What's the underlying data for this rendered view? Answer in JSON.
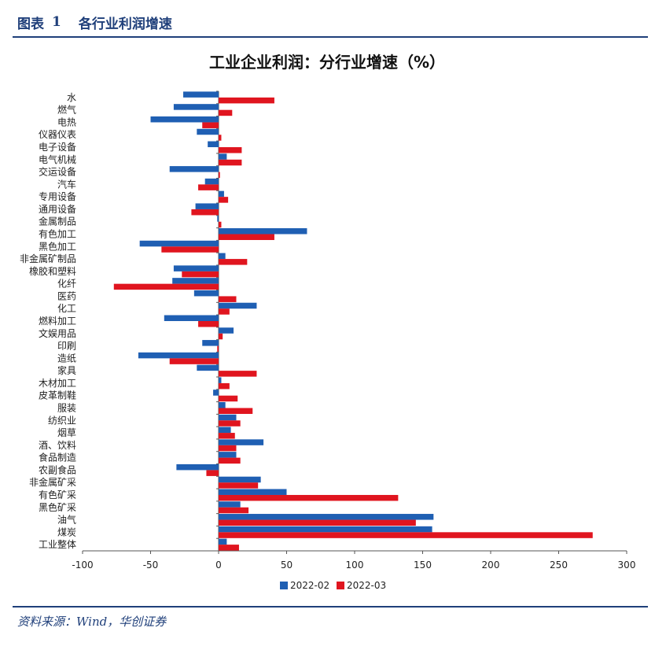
{
  "header": {
    "label": "图表",
    "number": "1",
    "title": "各行业利润增速"
  },
  "source": "资料来源：Wind，华创证券",
  "chart_data": {
    "type": "bar",
    "orientation": "horizontal",
    "title": "工业企业利润：分行业增速（%）",
    "xlabel": "",
    "ylabel": "",
    "xlim": [
      -100,
      300
    ],
    "xticks": [
      -100,
      -50,
      0,
      50,
      100,
      150,
      200,
      250,
      300
    ],
    "grid": false,
    "legend_position": "bottom",
    "categories": [
      "水",
      "燃气",
      "电热",
      "仪器仪表",
      "电子设备",
      "电气机械",
      "交运设备",
      "汽车",
      "专用设备",
      "通用设备",
      "金属制品",
      "有色加工",
      "黑色加工",
      "非金属矿制品",
      "橡胶和塑料",
      "化纤",
      "医药",
      "化工",
      "燃料加工",
      "文娱用品",
      "印刷",
      "造纸",
      "家具",
      "木材加工",
      "皮革制鞋",
      "服装",
      "纺织业",
      "烟草",
      "酒、饮料",
      "食品制造",
      "农副食品",
      "非金属矿采",
      "有色矿采",
      "黑色矿采",
      "油气",
      "煤炭",
      "工业整体"
    ],
    "series": [
      {
        "name": "2022-02",
        "color": "#1f5fb3",
        "values": [
          -26,
          -33,
          -50,
          -16,
          -8,
          6,
          -36,
          -10,
          4,
          -17,
          -1,
          65,
          -58,
          5,
          -33,
          -34,
          -18,
          28,
          -40,
          11,
          -12,
          -59,
          -16,
          2,
          -4,
          5,
          13,
          9,
          33,
          13,
          -31,
          31,
          50,
          16,
          158,
          157,
          6
        ]
      },
      {
        "name": "2022-03",
        "color": "#e0151f",
        "values": [
          41,
          10,
          -12,
          2,
          17,
          17,
          1,
          -15,
          7,
          -20,
          2,
          41,
          -42,
          21,
          -27,
          -77,
          13,
          8,
          -15,
          3,
          -1,
          -36,
          28,
          8,
          14,
          25,
          16,
          12,
          13,
          16,
          -9,
          29,
          132,
          22,
          145,
          275,
          15
        ]
      }
    ]
  }
}
